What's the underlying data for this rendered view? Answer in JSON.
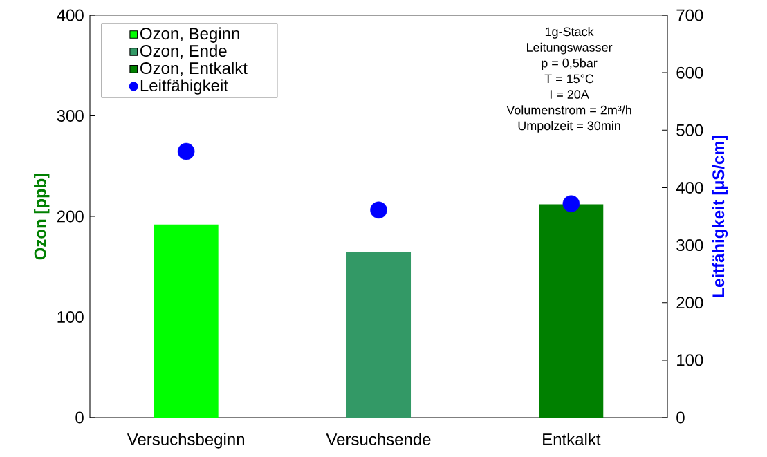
{
  "chart_data": {
    "type": "bar",
    "categories": [
      "Versuchsbeginn",
      "Versuchsende",
      "Entkalkt"
    ],
    "ylabel": "Ozon [ppb]",
    "y2label": "Leitfähigkeit [µS/cm]",
    "ylim": [
      0,
      400
    ],
    "yticks": [
      0,
      100,
      200,
      300,
      400
    ],
    "y2lim": [
      0,
      700
    ],
    "y2ticks": [
      0,
      100,
      200,
      300,
      400,
      500,
      600,
      700
    ],
    "legend": "top left",
    "series": [
      {
        "name": "Ozon, Beginn",
        "color": "#00ff00",
        "values": [
          192,
          null,
          null
        ]
      },
      {
        "name": "Ozon, Ende",
        "color": "#339966",
        "values": [
          null,
          165,
          null
        ]
      },
      {
        "name": "Ozon, Entkalkt",
        "color": "#008000",
        "values": [
          null,
          null,
          212
        ]
      },
      {
        "name": "Leitfähigkeit",
        "type": "scatter",
        "axis": "y2",
        "marker": "circle",
        "color": "#0000ff",
        "values": [
          463,
          361,
          372
        ]
      }
    ],
    "annotations": [
      "1g-Stack",
      "Leitungswasser",
      "p = 0,5bar",
      "T = 15°C",
      "I = 20A",
      "Volumenstrom = 2m³/h",
      "Umpolzeit = 30min"
    ]
  }
}
